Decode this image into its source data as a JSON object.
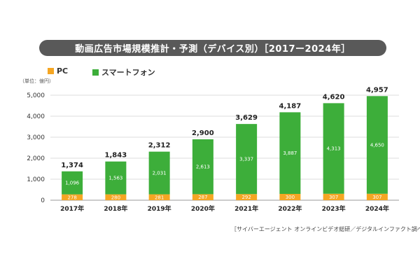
{
  "title": "動画広告市場規模推計・予測（デバイス別）［2017ー2024年］",
  "unit_label": "（単位：億円）",
  "source": "［サイバーエージェント オンラインビデオ総研／デジタルインファクト調べ］",
  "colors": {
    "pc": "#F5A623",
    "smartphone": "#3DAE3A",
    "title_bg": "#595959"
  },
  "chart_data": {
    "type": "bar",
    "stacked": true,
    "title": "動画広告市場規模推計・予測（デバイス別）［2017ー2024年］",
    "ylabel": "（単位：億円）",
    "xlabel": "",
    "categories": [
      "2017年",
      "2018年",
      "2019年",
      "2020年",
      "2021年",
      "2022年",
      "2023年",
      "2024年"
    ],
    "series": [
      {
        "name": "PC",
        "values": [
          278,
          280,
          281,
          287,
          292,
          300,
          307,
          307
        ],
        "labels": [
          "278",
          "280",
          "281",
          "287",
          "292",
          "300",
          "307",
          "307"
        ]
      },
      {
        "name": "スマートフォン",
        "values": [
          1096,
          1563,
          2031,
          2613,
          3337,
          3887,
          4313,
          4650
        ],
        "labels": [
          "1,096",
          "1,563",
          "2,031",
          "2,613",
          "3,337",
          "3,887",
          "4,313",
          "4,650"
        ]
      }
    ],
    "totals": [
      "1,374",
      "1,843",
      "2,312",
      "2,900",
      "3,629",
      "4,187",
      "4,620",
      "4,957"
    ],
    "total_values": [
      1374,
      1843,
      2312,
      2900,
      3629,
      4187,
      4620,
      4957
    ],
    "ylim": [
      0,
      5000
    ],
    "yticks": [
      0,
      1000,
      2000,
      3000,
      4000,
      5000
    ],
    "ytick_labels": [
      "0",
      "1,000",
      "2,000",
      "3,000",
      "4,000",
      "5,000"
    ],
    "grid": true,
    "legend_position": "top-left"
  }
}
